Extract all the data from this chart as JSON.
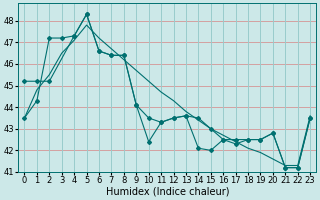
{
  "xlabel": "Humidex (Indice chaleur)",
  "bg_color": "#cce8e8",
  "grid_color_h": "#d4a0a0",
  "grid_color_v": "#99cccc",
  "line_color": "#007070",
  "xlim": [
    -0.5,
    23.5
  ],
  "ylim": [
    41,
    48.8
  ],
  "yticks": [
    41,
    42,
    43,
    44,
    45,
    46,
    47,
    48
  ],
  "xticks": [
    0,
    1,
    2,
    3,
    4,
    5,
    6,
    7,
    8,
    9,
    10,
    11,
    12,
    13,
    14,
    15,
    16,
    17,
    18,
    19,
    20,
    21,
    22,
    23
  ],
  "line1_x": [
    0,
    1,
    2,
    3,
    4,
    5,
    6,
    7,
    8,
    9,
    10,
    11,
    12,
    13,
    14,
    15,
    16,
    17,
    18,
    19,
    20,
    21,
    22,
    23
  ],
  "line1_y": [
    43.5,
    44.3,
    47.2,
    47.2,
    47.3,
    48.3,
    46.6,
    46.4,
    46.4,
    44.1,
    42.4,
    43.3,
    43.5,
    43.6,
    42.1,
    42.0,
    42.5,
    42.3,
    42.5,
    42.5,
    42.8,
    41.2,
    41.2,
    43.5
  ],
  "line2_x": [
    0,
    1,
    2,
    4,
    5,
    6,
    7,
    8,
    9,
    10,
    11,
    12,
    13,
    14,
    15,
    16,
    17,
    18,
    19,
    20,
    21,
    22,
    23
  ],
  "line2_y": [
    45.2,
    45.2,
    45.2,
    47.3,
    48.3,
    46.6,
    46.4,
    46.4,
    44.1,
    43.5,
    43.3,
    43.5,
    43.6,
    43.5,
    43.0,
    42.5,
    42.5,
    42.5,
    42.5,
    42.8,
    41.2,
    41.2,
    43.5
  ],
  "line3_x": [
    0,
    1,
    2,
    3,
    4,
    5,
    6,
    7,
    8,
    9,
    10,
    11,
    12,
    13,
    14,
    15,
    16,
    17,
    18,
    19,
    20,
    21,
    22,
    23
  ],
  "line3_y": [
    43.5,
    44.8,
    45.5,
    46.5,
    47.1,
    47.8,
    47.2,
    46.7,
    46.2,
    45.7,
    45.2,
    44.7,
    44.3,
    43.8,
    43.4,
    43.0,
    42.7,
    42.4,
    42.1,
    41.9,
    41.6,
    41.3,
    41.3,
    43.6
  ],
  "tick_fontsize": 6,
  "label_fontsize": 7,
  "marker_size": 2.0
}
